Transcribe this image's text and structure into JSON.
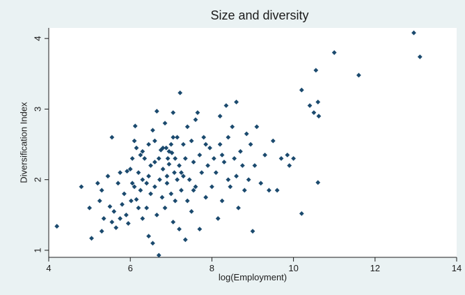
{
  "chart_data": {
    "type": "scatter",
    "title": "Size and diversity",
    "xlabel": "log(Employment)",
    "ylabel": "Diversification Index",
    "xlim": [
      4,
      14
    ],
    "ylim": [
      0.9,
      4.15
    ],
    "xticks": [
      "4",
      "6",
      "8",
      "10",
      "12",
      "14"
    ],
    "yticks": [
      "1",
      "2",
      "3",
      "4"
    ],
    "grid": false,
    "legend": "none",
    "colors": {
      "background": "#eaf2f3",
      "plot_background": "#ffffff",
      "marker": "#1b4a6e",
      "text": "#1c1c1c"
    },
    "points": [
      [
        4.2,
        1.34
      ],
      [
        4.8,
        1.9
      ],
      [
        5.0,
        1.6
      ],
      [
        5.05,
        1.17
      ],
      [
        5.2,
        1.95
      ],
      [
        5.25,
        1.7
      ],
      [
        5.3,
        1.27
      ],
      [
        5.3,
        1.85
      ],
      [
        5.35,
        1.45
      ],
      [
        5.45,
        2.05
      ],
      [
        5.5,
        1.62
      ],
      [
        5.55,
        2.6
      ],
      [
        5.55,
        1.4
      ],
      [
        5.6,
        1.55
      ],
      [
        5.65,
        1.32
      ],
      [
        5.7,
        1.95
      ],
      [
        5.75,
        2.1
      ],
      [
        5.8,
        1.65
      ],
      [
        5.85,
        1.8
      ],
      [
        5.9,
        1.5
      ],
      [
        5.92,
        2.12
      ],
      [
        5.95,
        1.38
      ],
      [
        6.0,
        2.15
      ],
      [
        6.02,
        1.7
      ],
      [
        6.05,
        2.3
      ],
      [
        6.1,
        1.9
      ],
      [
        6.1,
        2.55
      ],
      [
        6.12,
        2.76
      ],
      [
        6.15,
        2.45
      ],
      [
        6.2,
        2.1
      ],
      [
        6.2,
        1.6
      ],
      [
        6.25,
        2.35
      ],
      [
        6.25,
        1.85
      ],
      [
        6.3,
        2.0
      ],
      [
        6.3,
        1.45
      ],
      [
        6.35,
        2.3
      ],
      [
        6.4,
        1.95
      ],
      [
        6.4,
        1.6
      ],
      [
        6.45,
        2.5
      ],
      [
        6.45,
        1.2
      ],
      [
        6.5,
        1.8
      ],
      [
        6.5,
        2.2
      ],
      [
        6.55,
        2.7
      ],
      [
        6.55,
        1.1
      ],
      [
        6.6,
        1.9
      ],
      [
        6.6,
        2.55
      ],
      [
        6.65,
        2.97
      ],
      [
        6.65,
        1.5
      ],
      [
        6.7,
        0.93
      ],
      [
        6.7,
        2.3
      ],
      [
        6.72,
        2.0
      ],
      [
        6.75,
        2.42
      ],
      [
        6.78,
        1.75
      ],
      [
        6.8,
        2.15
      ],
      [
        6.8,
        2.45
      ],
      [
        6.85,
        1.6
      ],
      [
        6.85,
        2.8
      ],
      [
        6.88,
        2.45
      ],
      [
        6.9,
        1.95
      ],
      [
        6.92,
        2.3
      ],
      [
        6.95,
        2.4
      ],
      [
        6.95,
        2.22
      ],
      [
        7.0,
        1.8
      ],
      [
        7.0,
        2.5
      ],
      [
        7.02,
        2.38
      ],
      [
        7.05,
        2.95
      ],
      [
        7.05,
        1.4
      ],
      [
        7.08,
        2.1
      ],
      [
        7.1,
        1.7
      ],
      [
        7.1,
        2.3
      ],
      [
        7.15,
        2.0
      ],
      [
        7.15,
        2.6
      ],
      [
        7.2,
        1.3
      ],
      [
        7.2,
        2.2
      ],
      [
        7.22,
        3.23
      ],
      [
        7.25,
        1.85
      ],
      [
        7.3,
        2.5
      ],
      [
        7.3,
        2.05
      ],
      [
        7.35,
        1.15
      ],
      [
        7.35,
        2.3
      ],
      [
        7.4,
        1.7
      ],
      [
        7.4,
        2.75
      ],
      [
        7.45,
        2.0
      ],
      [
        7.5,
        2.55
      ],
      [
        7.5,
        1.55
      ],
      [
        7.55,
        2.25
      ],
      [
        7.6,
        1.9
      ],
      [
        7.6,
        2.85
      ],
      [
        7.65,
        2.95
      ],
      [
        7.7,
        2.35
      ],
      [
        7.7,
        1.3
      ],
      [
        7.75,
        2.1
      ],
      [
        7.8,
        2.6
      ],
      [
        7.85,
        1.75
      ],
      [
        7.9,
        2.2
      ],
      [
        7.95,
        2.45
      ],
      [
        8.0,
        1.9
      ],
      [
        8.05,
        2.3
      ],
      [
        8.1,
        2.1
      ],
      [
        8.15,
        1.45
      ],
      [
        8.2,
        2.5
      ],
      [
        8.2,
        2.9
      ],
      [
        8.25,
        1.7
      ],
      [
        8.3,
        2.25
      ],
      [
        8.35,
        3.05
      ],
      [
        8.4,
        2.0
      ],
      [
        8.4,
        2.6
      ],
      [
        8.45,
        1.9
      ],
      [
        8.5,
        2.75
      ],
      [
        8.55,
        2.3
      ],
      [
        8.6,
        2.05
      ],
      [
        8.6,
        3.1
      ],
      [
        8.65,
        1.6
      ],
      [
        8.7,
        2.4
      ],
      [
        8.75,
        2.2
      ],
      [
        8.8,
        1.85
      ],
      [
        8.85,
        2.65
      ],
      [
        8.9,
        2.0
      ],
      [
        8.95,
        2.5
      ],
      [
        9.0,
        1.27
      ],
      [
        9.05,
        2.2
      ],
      [
        9.1,
        2.75
      ],
      [
        9.2,
        1.95
      ],
      [
        9.3,
        2.35
      ],
      [
        9.4,
        1.85
      ],
      [
        9.5,
        2.55
      ],
      [
        9.6,
        1.85
      ],
      [
        9.7,
        2.3
      ],
      [
        9.85,
        2.35
      ],
      [
        9.9,
        2.2
      ],
      [
        10.0,
        2.3
      ],
      [
        10.2,
        1.52
      ],
      [
        10.2,
        3.27
      ],
      [
        10.4,
        3.05
      ],
      [
        10.5,
        2.95
      ],
      [
        10.55,
        3.55
      ],
      [
        10.6,
        3.1
      ],
      [
        10.6,
        1.96
      ],
      [
        10.62,
        2.9
      ],
      [
        11.0,
        3.8
      ],
      [
        11.6,
        3.48
      ],
      [
        12.95,
        4.08
      ],
      [
        13.1,
        3.74
      ],
      [
        7.25,
        2.1
      ],
      [
        6.3,
        2.4
      ],
      [
        5.75,
        1.45
      ],
      [
        6.05,
        1.95
      ],
      [
        6.9,
        2.05
      ],
      [
        7.55,
        1.85
      ],
      [
        8.25,
        2.35
      ],
      [
        6.15,
        1.72
      ],
      [
        7.85,
        2.5
      ],
      [
        6.45,
        2.05
      ],
      [
        7.05,
        2.6
      ],
      [
        6.6,
        2.25
      ]
    ]
  }
}
